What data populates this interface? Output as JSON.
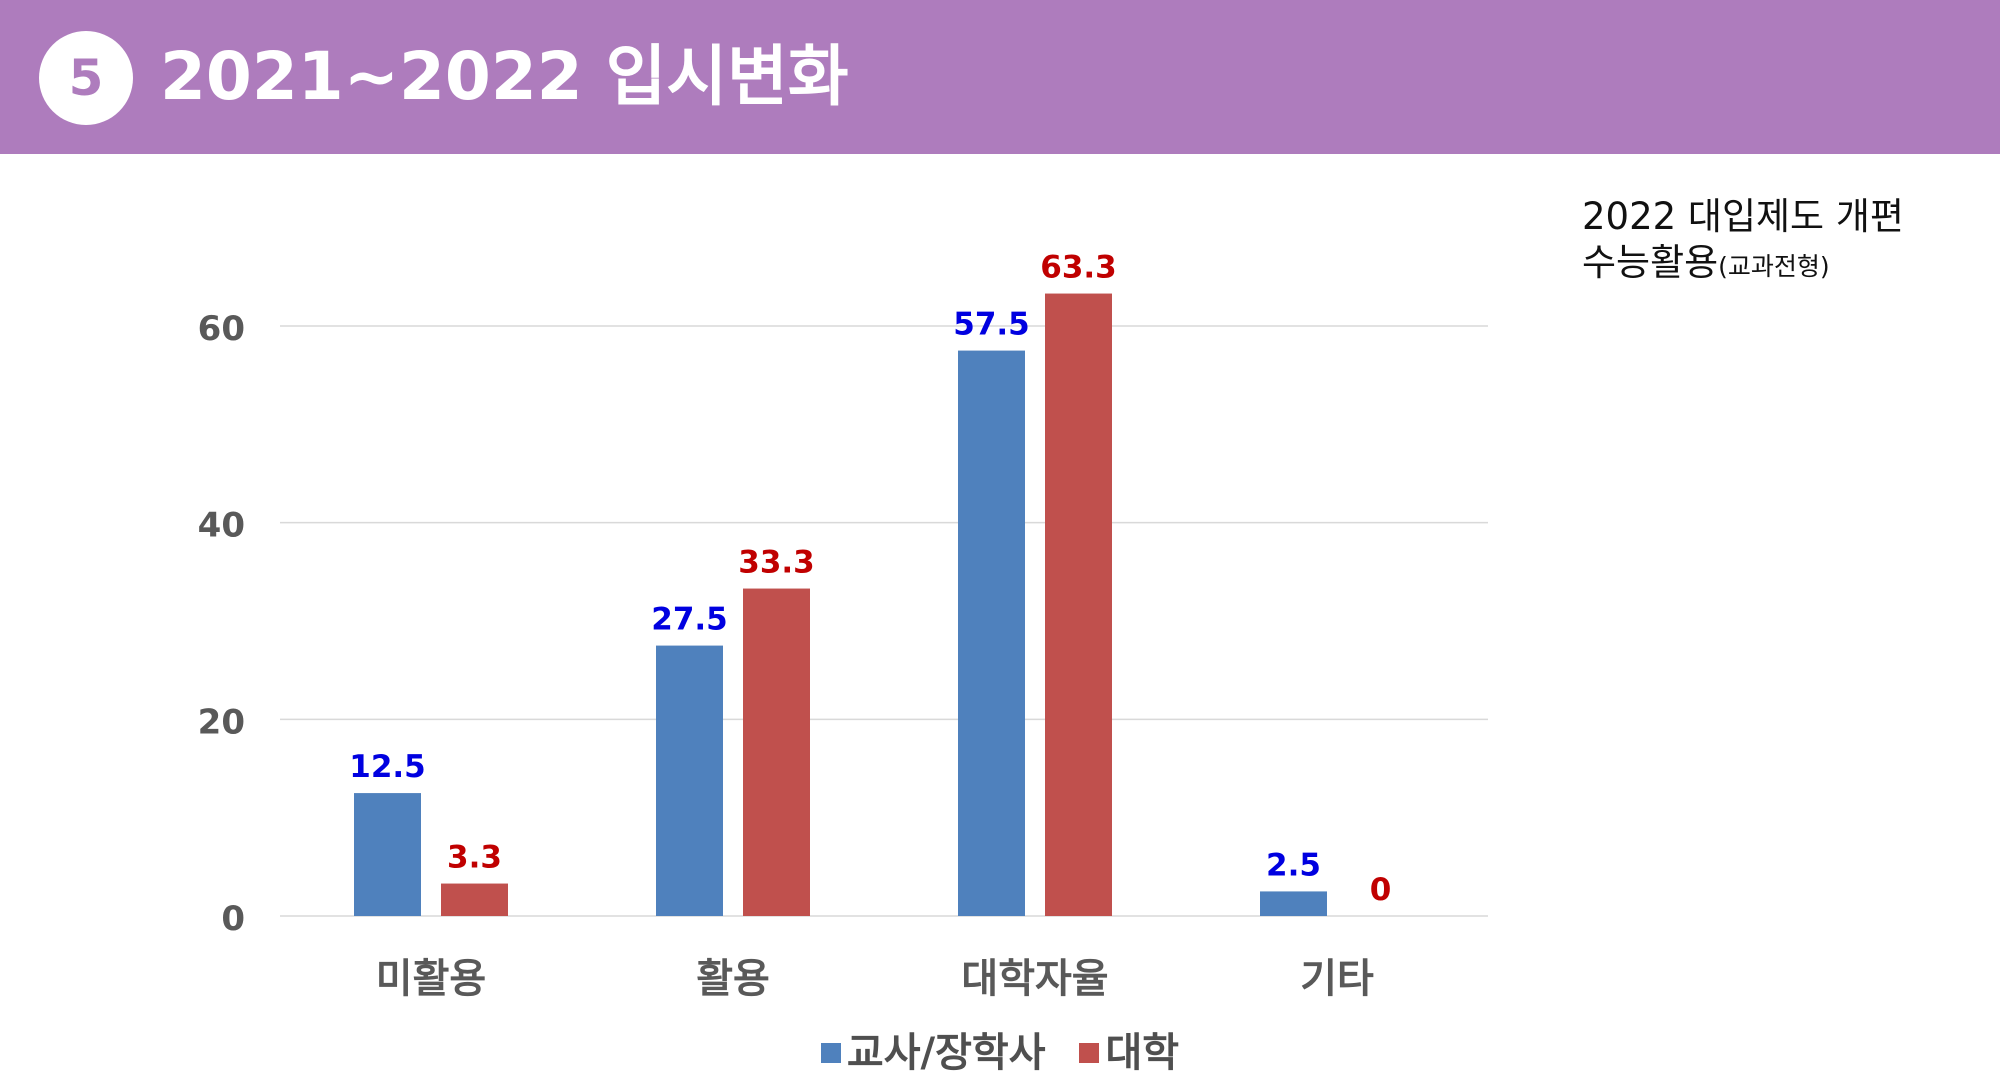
{
  "header": {
    "number": "5",
    "title": "2021~2022 입시변화"
  },
  "note": {
    "line1": "2022 대입제도 개편",
    "line2_main": "수능활용",
    "line2_sub": "(교과전형)"
  },
  "colors": {
    "header_bg": "#ae7cbd",
    "series_1": "#4f81bd",
    "series_2": "#c0504d",
    "label_1": "#0000e0",
    "label_2": "#c00000"
  },
  "chart_data": {
    "type": "bar",
    "categories": [
      "미활용",
      "활용",
      "대학자율",
      "기타"
    ],
    "series": [
      {
        "name": "교사/장학사",
        "values": [
          12.5,
          27.5,
          57.5,
          2.5
        ]
      },
      {
        "name": "대학",
        "values": [
          3.3,
          33.3,
          63.3,
          0
        ]
      }
    ],
    "data_labels": [
      [
        "12.5",
        "27.5",
        "57.5",
        "2.5"
      ],
      [
        "3.3",
        "33.3",
        "63.3",
        "0"
      ]
    ],
    "yticks": [
      0,
      20,
      40,
      60
    ],
    "ylim": [
      0,
      60
    ],
    "grid": true,
    "legend": "bottom"
  }
}
